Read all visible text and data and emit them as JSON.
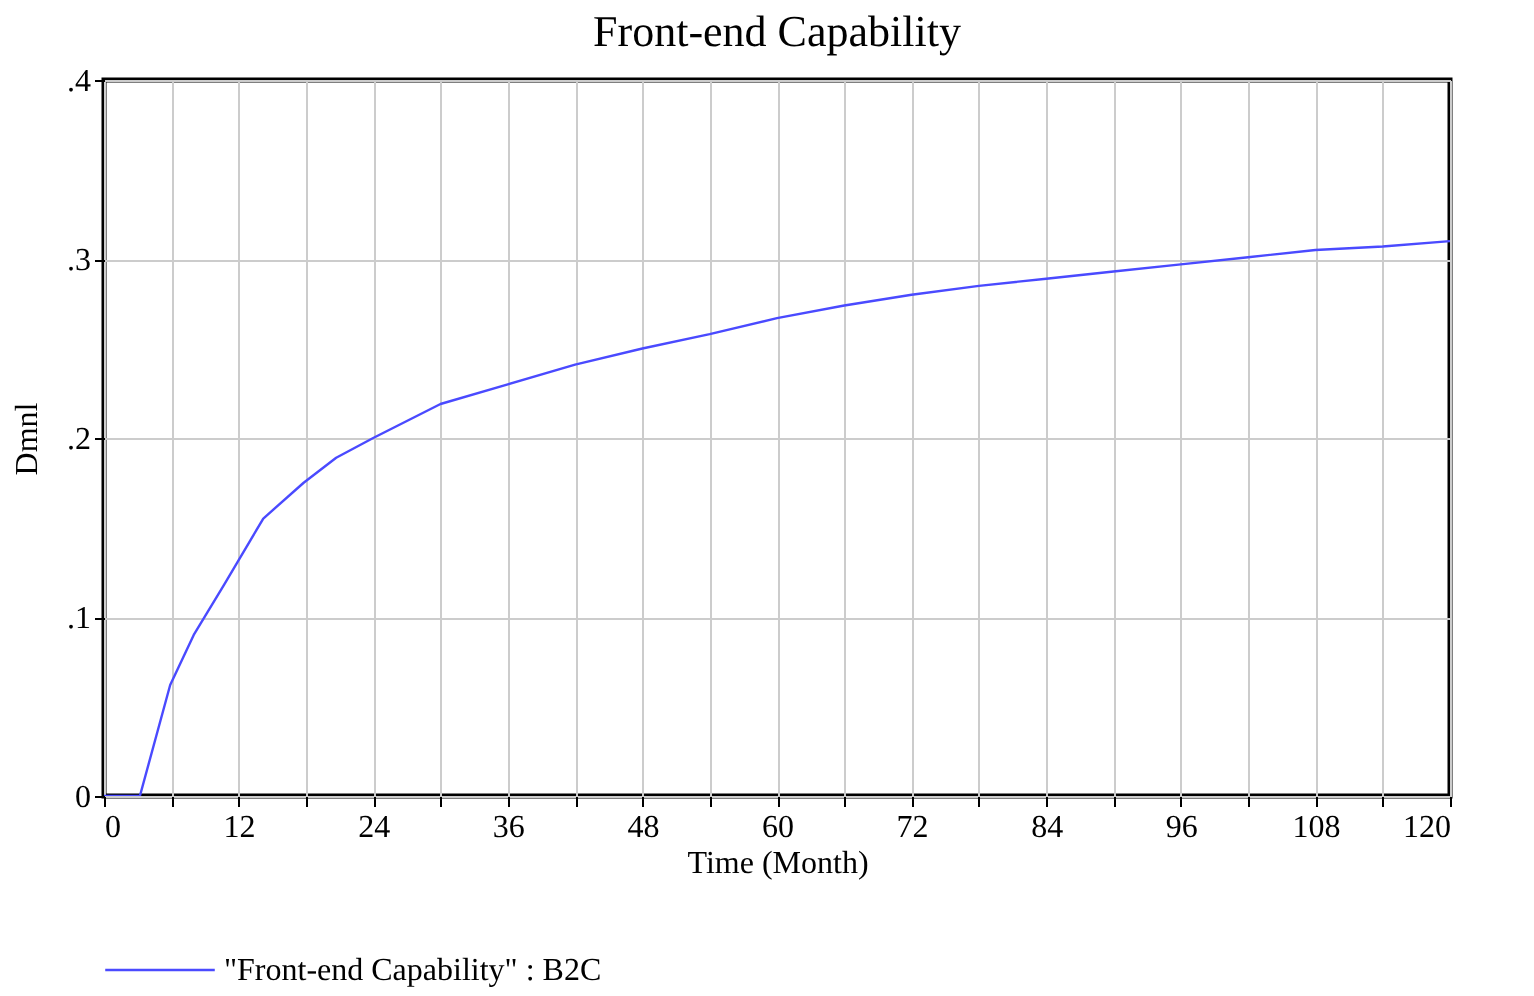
{
  "chart_data": {
    "type": "line",
    "title": "Front-end Capability",
    "xlabel": "Time (Month)",
    "ylabel": "Dmnl",
    "x": [
      0,
      3.2,
      5.9,
      8,
      10.7,
      14.2,
      17.8,
      20.7,
      24,
      30,
      36,
      42,
      48,
      54,
      60,
      66,
      72,
      78,
      84,
      90,
      96,
      102,
      108,
      114,
      120
    ],
    "series": [
      {
        "name": "\"Front-end Capability\" : B2C",
        "color": "#4a4aff",
        "values": [
          0,
          0,
          0.062,
          0.09,
          0.118,
          0.155,
          0.175,
          0.189,
          0.2,
          0.219,
          0.23,
          0.241,
          0.25,
          0.258,
          0.267,
          0.274,
          0.28,
          0.285,
          0.289,
          0.293,
          0.297,
          0.301,
          0.305,
          0.307,
          0.31
        ]
      }
    ],
    "xlim": [
      0,
      120
    ],
    "xticks": [
      0,
      {
        "value": 6,
        "label": null
      },
      12,
      {
        "value": 18,
        "label": null
      },
      24,
      {
        "value": 30,
        "label": null
      },
      36,
      {
        "value": 42,
        "label": null
      },
      48,
      {
        "value": 54,
        "label": null
      },
      60,
      {
        "value": 66,
        "label": null
      },
      72,
      {
        "value": 78,
        "label": null
      },
      84,
      {
        "value": 90,
        "label": null
      },
      96,
      {
        "value": 102,
        "label": null
      },
      108,
      {
        "value": 114,
        "label": null
      },
      120
    ],
    "ylim": [
      0,
      0.4
    ],
    "yticks": [
      0,
      {
        "value": 0.1,
        "label": ".1"
      },
      {
        "value": 0.2,
        "label": ".2"
      },
      {
        "value": 0.3,
        "label": ".3"
      },
      {
        "value": 0.4,
        "label": ".4"
      }
    ],
    "grid": true,
    "legend": "bottom",
    "marker": "none",
    "line_style": "solid"
  }
}
